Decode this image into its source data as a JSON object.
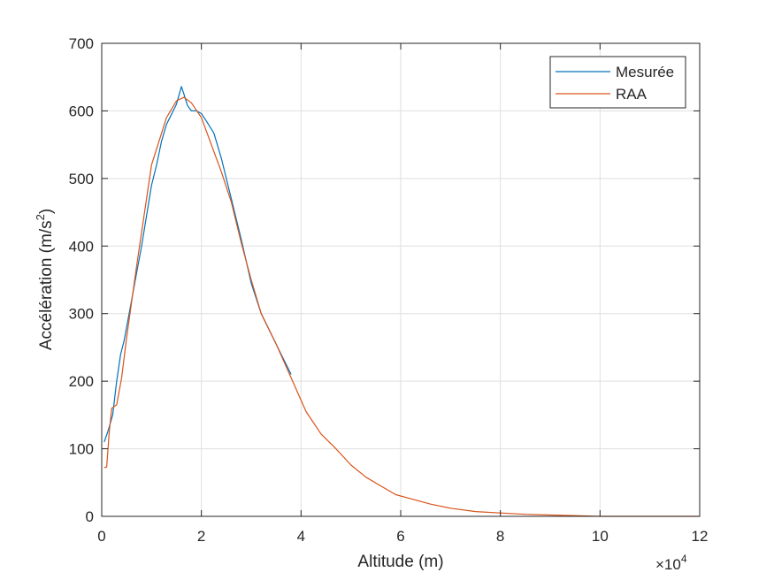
{
  "chart_data": {
    "type": "line",
    "xlabel": "Altitude (m)",
    "ylabel_main": "Accélération (m/s",
    "ylabel_sup": "2",
    "ylabel_close": ")",
    "x_multiplier": "×10",
    "x_multiplier_exp": "4",
    "xlim": [
      0,
      12
    ],
    "ylim": [
      0,
      700
    ],
    "xticks": [
      0,
      2,
      4,
      6,
      8,
      10,
      12
    ],
    "yticks": [
      0,
      100,
      200,
      300,
      400,
      500,
      600,
      700
    ],
    "grid": true,
    "legend_position": "top-right",
    "series": [
      {
        "name": "Mesurée",
        "color": "#0072BD",
        "x": [
          0.05,
          0.12,
          0.22,
          0.3,
          0.38,
          0.45,
          0.55,
          0.7,
          0.8,
          1.0,
          1.1,
          1.2,
          1.3,
          1.4,
          1.5,
          1.6,
          1.65,
          1.72,
          1.8,
          1.9,
          2.0,
          2.1,
          2.25,
          2.4,
          2.6,
          2.8,
          3.0,
          3.2,
          3.4,
          3.6,
          3.8
        ],
        "y": [
          110,
          125,
          150,
          200,
          240,
          260,
          300,
          360,
          400,
          490,
          520,
          555,
          580,
          595,
          610,
          636,
          625,
          608,
          600,
          600,
          596,
          585,
          567,
          530,
          470,
          410,
          345,
          300,
          270,
          240,
          210
        ]
      },
      {
        "name": "RAA",
        "color": "#D95319",
        "x": [
          0.05,
          0.1,
          0.15,
          0.2,
          0.3,
          0.4,
          0.5,
          0.7,
          1.0,
          1.3,
          1.5,
          1.65,
          1.8,
          2.0,
          2.2,
          2.4,
          2.6,
          2.8,
          3.0,
          3.2,
          3.5,
          3.8,
          4.1,
          4.4,
          4.7,
          5.0,
          5.3,
          5.6,
          5.9,
          6.2,
          6.6,
          7.0,
          7.5,
          8.0,
          8.5,
          9.0,
          9.5,
          10.0,
          10.5,
          11.0,
          11.5,
          12.0
        ],
        "y": [
          72,
          73,
          125,
          160,
          165,
          205,
          265,
          370,
          520,
          590,
          615,
          620,
          612,
          590,
          550,
          510,
          465,
          405,
          350,
          300,
          255,
          205,
          155,
          122,
          100,
          76,
          58,
          45,
          32,
          26,
          18,
          12,
          7,
          5,
          3,
          2,
          1,
          0,
          0,
          0,
          0,
          0
        ]
      }
    ]
  }
}
